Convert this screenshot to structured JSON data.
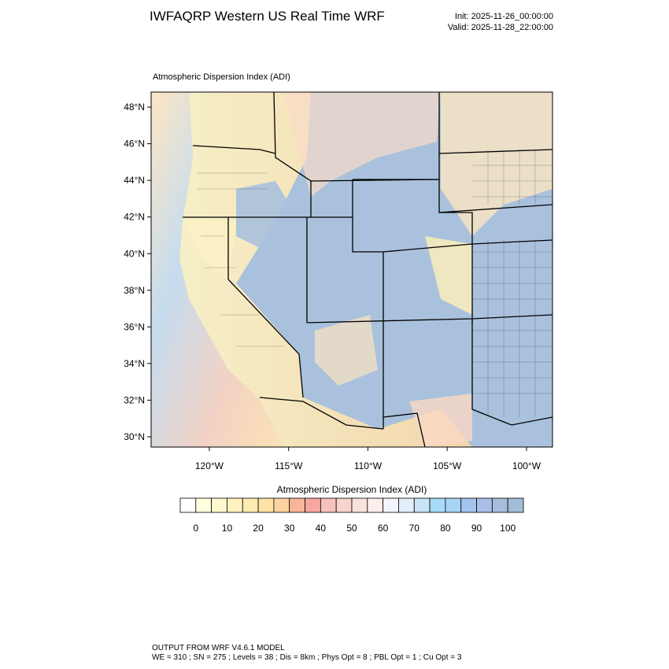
{
  "header": {
    "title": "IWFAQRP Western US Real Time WRF",
    "init": "Init: 2025-11-26_00:00:00",
    "valid": "Valid: 2025-11-28_22:00:00"
  },
  "map": {
    "subtitle": "Atmospheric Dispersion Index   (ADI)",
    "latlim": [
      29.44,
      48.82
    ],
    "lonlim": [
      -123.67,
      -98.36
    ],
    "latticks": [
      {
        "value": 30,
        "label": "30°N"
      },
      {
        "value": 32,
        "label": "32°N"
      },
      {
        "value": 34,
        "label": "34°N"
      },
      {
        "value": 36,
        "label": "36°N"
      },
      {
        "value": 38,
        "label": "38°N"
      },
      {
        "value": 40,
        "label": "40°N"
      },
      {
        "value": 42,
        "label": "42°N"
      },
      {
        "value": 44,
        "label": "44°N"
      },
      {
        "value": 46,
        "label": "46°N"
      },
      {
        "value": 48,
        "label": "48°N"
      }
    ],
    "lonticks": [
      {
        "value": -120,
        "label": "120°W"
      },
      {
        "value": -115,
        "label": "115°W"
      },
      {
        "value": -110,
        "label": "110°W"
      },
      {
        "value": -105,
        "label": "105°W"
      },
      {
        "value": -100,
        "label": "100°W"
      }
    ]
  },
  "colorbar": {
    "title": "Atmospheric Dispersion Index  (ADI)",
    "lim": [
      -5,
      105
    ],
    "ticks": [
      0,
      10,
      20,
      30,
      40,
      50,
      60,
      70,
      80,
      90,
      100
    ],
    "colors": [
      "#ffffff",
      "#ffffe0",
      "#fffacd",
      "#fff3c0",
      "#ffecb0",
      "#ffe2a6",
      "#fcd3a0",
      "#f9b59a",
      "#f6a8a0",
      "#f6c2bc",
      "#f8d2cc",
      "#fae2dc",
      "#fcefec",
      "#f4f4fc",
      "#e4eefa",
      "#c8e4f6",
      "#a6dcf8",
      "#a8d4f4",
      "#a4c4ee",
      "#a8c0e8",
      "#a6bedc",
      "#a3bdd6"
    ]
  },
  "footer": {
    "line1": "OUTPUT FROM WRF V4.6.1 MODEL",
    "line2": "WE = 310 ; SN = 275 ; Levels = 38 ; Dis = 8km ; Phys Opt = 8 ; PBL Opt = 1 ; Cu Opt = 3"
  }
}
